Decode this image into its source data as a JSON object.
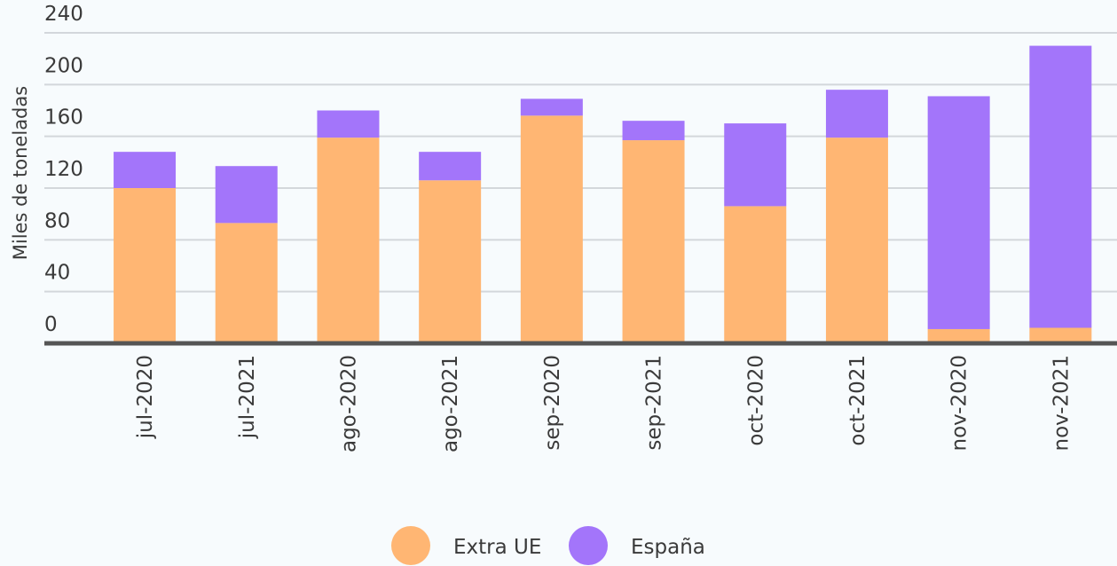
{
  "chart_data": {
    "type": "stacked_bar",
    "y_label": "Miles de toneladas",
    "categories": [
      "jul-2020",
      "jul-2021",
      "ago-2020",
      "ago-2021",
      "sep-2020",
      "sep-2021",
      "oct-2020",
      "oct-2021",
      "nov-2020",
      "nov-2021"
    ],
    "series": [
      {
        "name": "Extra UE",
        "color": "#ffb673",
        "values": [
          120,
          93,
          159,
          126,
          176,
          157,
          106,
          159,
          11,
          12
        ]
      },
      {
        "name": "España",
        "color": "#a375fa",
        "values": [
          28,
          44,
          21,
          22,
          13,
          15,
          64,
          37,
          180,
          218
        ]
      }
    ],
    "ylim": [
      0,
      240
    ],
    "yticks": [
      0,
      40,
      80,
      120,
      160,
      200,
      240
    ],
    "grid": true,
    "legend": "bottom"
  }
}
